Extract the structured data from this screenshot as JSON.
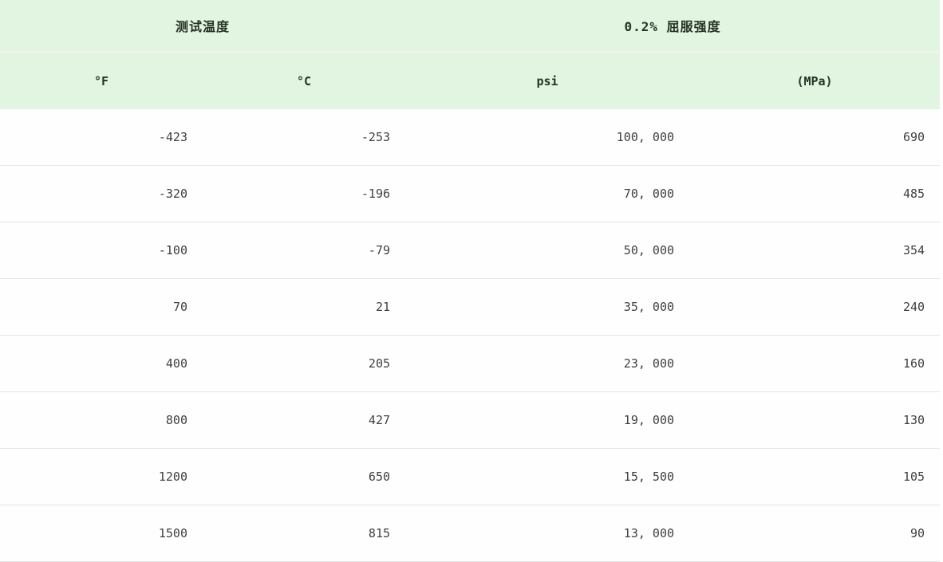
{
  "table": {
    "column_groups": [
      {
        "label": "测试温度",
        "colspan": 2
      },
      {
        "label": "0.2% 屈服强度",
        "colspan": 2
      }
    ],
    "columns": [
      {
        "key": "temp-f",
        "label": "°F"
      },
      {
        "key": "temp-c",
        "label": "°C"
      },
      {
        "key": "psi",
        "label": "psi"
      },
      {
        "key": "mpa",
        "label": "(MPa)"
      }
    ],
    "rows": [
      [
        "-423",
        "-253",
        "100, 000",
        "690"
      ],
      [
        "-320",
        "-196",
        "70, 000",
        "485"
      ],
      [
        "-100",
        "-79",
        "50, 000",
        "354"
      ],
      [
        "70",
        "21",
        "35, 000",
        "240"
      ],
      [
        "400",
        "205",
        "23, 000",
        "160"
      ],
      [
        "800",
        "427",
        "19, 000",
        "130"
      ],
      [
        "1200",
        "650",
        "15, 500",
        "105"
      ],
      [
        "1500",
        "815",
        "13, 000",
        "90"
      ]
    ]
  },
  "colors": {
    "header_background": "#e2f5e1",
    "header_text": "#263326",
    "body_text": "#3f3f3f",
    "row_divider": "#e5e5e5",
    "header_divider": "#eef3ed",
    "page_background": "#ffffff"
  }
}
